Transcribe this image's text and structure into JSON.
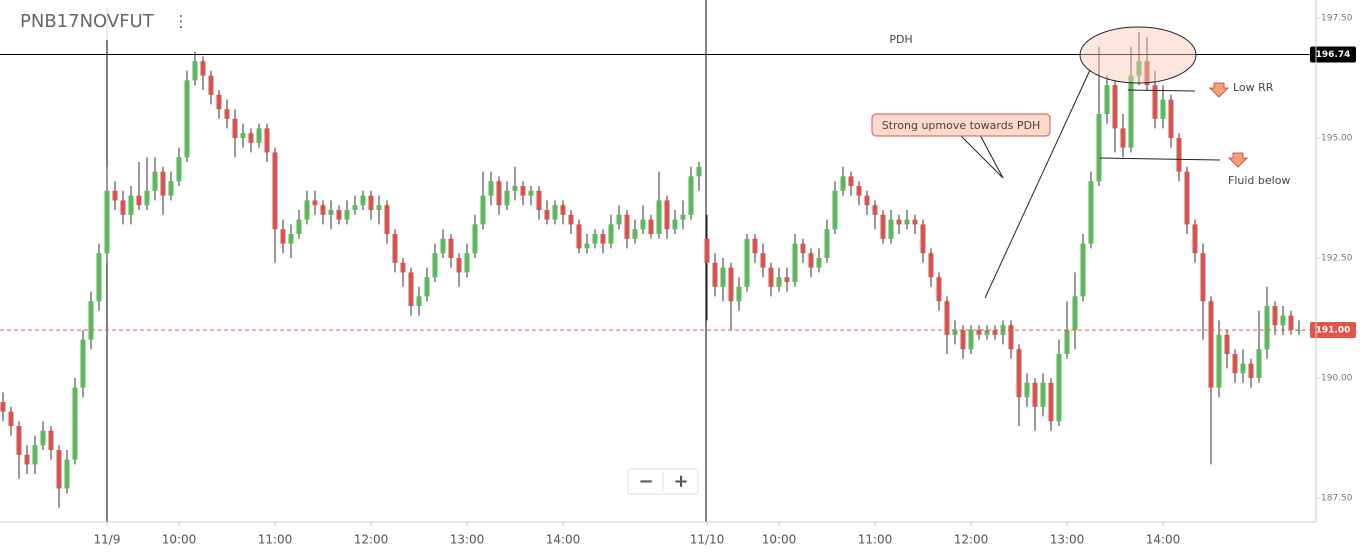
{
  "chart_data": {
    "type": "candlestick",
    "title": "PNB17NOVFUT",
    "up_color": "#5cb85c",
    "down_color": "#d9534f",
    "open": [
      189.5,
      189.3,
      189.0,
      188.4,
      188.2,
      188.6,
      188.9,
      188.5,
      187.7,
      188.3,
      189.8,
      190.8,
      191.6,
      192.6,
      193.9,
      193.7,
      193.4,
      193.8,
      193.6,
      193.9,
      194.3,
      193.8,
      194.1,
      194.6,
      196.2,
      196.6,
      196.3,
      195.9,
      195.6,
      195.4,
      195.0,
      195.1,
      194.9,
      195.2,
      194.7,
      193.1,
      192.8,
      193.0,
      193.3,
      193.7,
      193.6,
      193.4,
      193.5,
      193.3,
      193.5,
      193.6,
      193.8,
      193.5,
      193.6,
      193.0,
      192.4,
      192.2,
      191.5,
      191.7,
      192.1,
      192.6,
      192.9,
      192.5,
      192.2,
      192.6,
      193.2,
      193.8,
      194.1,
      193.6,
      193.9,
      194.0,
      193.8,
      193.9,
      193.5,
      193.3,
      193.6,
      193.4,
      193.2,
      192.7,
      192.8,
      193.0,
      192.8,
      193.2,
      193.4,
      192.9,
      193.1,
      193.3,
      193.0,
      193.7,
      193.1,
      193.3,
      193.4,
      194.2,
      192.9,
      192.4,
      191.9,
      192.3,
      191.6,
      191.9,
      192.9,
      192.6,
      192.3,
      191.9,
      192.1,
      192.0,
      192.8,
      192.6,
      192.3,
      192.5,
      193.1,
      193.9,
      194.2,
      194.0,
      193.8,
      193.6,
      193.4,
      192.9,
      193.3,
      193.2,
      193.3,
      193.2,
      192.6,
      192.1,
      191.6,
      190.9,
      191.0,
      190.6,
      191.0,
      190.9,
      191.0,
      190.9,
      191.1,
      190.6,
      189.6,
      189.9,
      189.4,
      189.9,
      189.1,
      190.5,
      191.0,
      191.7,
      192.8,
      194.1,
      195.5,
      196.1,
      195.2,
      194.8,
      196.3,
      196.6,
      196.1,
      195.4,
      195.8,
      195.0,
      194.3,
      193.2,
      192.6,
      191.6,
      189.8,
      190.9,
      190.5,
      190.1,
      190.3,
      190.0,
      190.6,
      191.5,
      191.1,
      191.3,
      191.0
    ],
    "high": [
      189.7,
      189.4,
      189.1,
      188.6,
      188.8,
      189.1,
      189.0,
      188.6,
      188.5,
      190.0,
      191.0,
      191.8,
      192.8,
      194.4,
      194.1,
      193.9,
      194.0,
      194.5,
      194.6,
      194.6,
      194.4,
      194.3,
      194.8,
      196.4,
      196.8,
      196.7,
      196.4,
      196.0,
      195.8,
      195.6,
      195.3,
      195.2,
      195.3,
      195.3,
      194.8,
      193.3,
      193.2,
      193.5,
      193.9,
      193.9,
      193.7,
      193.7,
      193.6,
      193.7,
      193.8,
      193.9,
      193.9,
      193.8,
      193.7,
      193.1,
      192.5,
      192.3,
      191.9,
      192.3,
      192.8,
      193.1,
      193.0,
      192.6,
      192.8,
      193.4,
      194.3,
      194.3,
      194.2,
      194.1,
      194.4,
      194.1,
      194.0,
      194.0,
      193.7,
      193.7,
      193.7,
      193.5,
      193.3,
      193.0,
      193.1,
      193.1,
      193.4,
      193.6,
      193.5,
      193.3,
      193.6,
      193.4,
      194.3,
      193.8,
      193.5,
      193.7,
      194.4,
      194.5,
      193.4,
      192.6,
      192.5,
      192.4,
      192.1,
      193.0,
      193.0,
      192.8,
      192.4,
      192.3,
      192.3,
      193.0,
      192.9,
      192.7,
      192.7,
      193.3,
      194.1,
      194.4,
      194.3,
      194.1,
      193.9,
      193.7,
      193.5,
      193.5,
      193.4,
      193.5,
      193.4,
      193.3,
      192.7,
      192.2,
      191.7,
      191.2,
      191.1,
      191.1,
      191.1,
      191.1,
      191.1,
      191.2,
      191.2,
      190.7,
      190.1,
      190.0,
      190.1,
      190.0,
      190.8,
      191.6,
      192.2,
      193.0,
      194.3,
      196.9,
      196.3,
      196.2,
      195.5,
      196.9,
      197.2,
      197.1,
      196.4,
      196.1,
      195.9,
      195.1,
      194.4,
      193.3,
      192.8,
      191.7,
      191.2,
      191.0,
      190.6,
      190.6,
      190.4,
      191.4,
      191.9,
      191.6,
      191.5,
      191.4,
      191.2
    ],
    "low": [
      189.1,
      188.8,
      187.9,
      188.0,
      188.0,
      188.5,
      188.3,
      187.3,
      187.6,
      188.2,
      189.6,
      190.6,
      191.4,
      192.4,
      193.5,
      193.2,
      193.2,
      193.5,
      193.5,
      193.7,
      193.4,
      193.7,
      194.0,
      194.5,
      196.1,
      196.0,
      195.7,
      195.4,
      195.2,
      194.6,
      194.8,
      194.7,
      194.8,
      194.5,
      192.4,
      192.6,
      192.5,
      192.9,
      193.2,
      193.4,
      193.2,
      193.1,
      193.2,
      193.2,
      193.4,
      193.5,
      193.3,
      193.2,
      192.8,
      192.2,
      191.9,
      191.3,
      191.3,
      191.6,
      192.0,
      192.5,
      192.3,
      191.9,
      192.1,
      192.5,
      193.1,
      193.6,
      193.4,
      193.5,
      193.7,
      193.6,
      193.6,
      193.3,
      193.2,
      193.2,
      193.2,
      193.0,
      192.6,
      192.6,
      192.7,
      192.6,
      192.7,
      193.1,
      192.7,
      192.8,
      193.0,
      192.9,
      192.9,
      192.9,
      193.0,
      193.1,
      193.3,
      193.9,
      191.2,
      191.7,
      191.6,
      191.0,
      191.4,
      191.8,
      192.4,
      192.1,
      191.7,
      191.8,
      191.8,
      191.9,
      192.4,
      192.1,
      192.2,
      192.4,
      193.0,
      193.8,
      193.8,
      193.6,
      193.4,
      193.1,
      192.8,
      192.8,
      193.0,
      193.1,
      193.0,
      192.4,
      191.9,
      191.4,
      190.5,
      190.7,
      190.4,
      190.5,
      190.8,
      190.8,
      190.8,
      190.7,
      190.4,
      189.0,
      189.4,
      188.9,
      189.2,
      188.9,
      189.0,
      190.4,
      190.6,
      191.6,
      192.7,
      194.0,
      195.3,
      194.7,
      194.6,
      194.7,
      196.1,
      196.0,
      195.2,
      195.2,
      194.8,
      194.1,
      193.0,
      192.4,
      190.8,
      188.2,
      189.6,
      190.2,
      189.9,
      189.9,
      189.8,
      189.9,
      190.4,
      190.9,
      190.9,
      190.9,
      190.9
    ],
    "close": [
      189.3,
      189.0,
      188.4,
      188.2,
      188.6,
      188.9,
      188.5,
      187.7,
      188.3,
      189.8,
      190.8,
      191.6,
      192.6,
      193.9,
      193.7,
      193.4,
      193.8,
      193.6,
      193.9,
      194.3,
      193.8,
      194.1,
      194.6,
      196.2,
      196.6,
      196.3,
      195.9,
      195.6,
      195.4,
      195.0,
      195.1,
      194.9,
      195.2,
      194.7,
      193.1,
      192.8,
      193.0,
      193.3,
      193.7,
      193.6,
      193.4,
      193.5,
      193.3,
      193.5,
      193.6,
      193.8,
      193.5,
      193.6,
      193.0,
      192.4,
      192.2,
      191.5,
      191.7,
      192.1,
      192.6,
      192.9,
      192.5,
      192.2,
      192.6,
      193.2,
      193.8,
      194.1,
      193.6,
      193.9,
      194.0,
      193.8,
      193.9,
      193.5,
      193.3,
      193.6,
      193.4,
      193.2,
      192.7,
      192.8,
      193.0,
      192.8,
      193.2,
      193.4,
      192.9,
      193.1,
      193.3,
      193.0,
      193.7,
      193.1,
      193.3,
      193.4,
      194.2,
      194.4,
      192.4,
      191.9,
      192.3,
      191.6,
      191.9,
      192.9,
      192.6,
      192.3,
      191.9,
      192.1,
      192.0,
      192.8,
      192.6,
      192.3,
      192.5,
      193.1,
      193.9,
      194.2,
      194.0,
      193.8,
      193.6,
      193.4,
      192.9,
      193.3,
      193.2,
      193.3,
      193.2,
      192.6,
      192.1,
      191.6,
      190.9,
      191.0,
      190.6,
      191.0,
      190.9,
      191.0,
      190.9,
      191.1,
      190.6,
      189.6,
      189.9,
      189.4,
      189.9,
      189.1,
      190.5,
      191.0,
      191.7,
      192.8,
      194.1,
      195.5,
      196.1,
      195.2,
      194.8,
      196.3,
      196.6,
      196.1,
      195.4,
      195.8,
      195.0,
      194.3,
      193.2,
      192.6,
      191.6,
      189.8,
      190.9,
      190.5,
      190.1,
      190.3,
      190.0,
      190.6,
      191.5,
      191.1,
      191.3,
      191.0,
      191.0
    ],
    "ylim": [
      187.0,
      197.875
    ],
    "yticks": [
      {
        "value": 187.5,
        "label": "187.50"
      },
      {
        "value": 190,
        "label": "190.00"
      },
      {
        "value": 192.5,
        "label": "192.50"
      },
      {
        "value": 195,
        "label": "195.00"
      },
      {
        "value": 197.5,
        "label": "197.50"
      }
    ],
    "xlim": [
      -0.375,
      164.125
    ],
    "xticks": [
      {
        "value": 13,
        "label": "11/9"
      },
      {
        "value": 22,
        "label": "10:00"
      },
      {
        "value": 34,
        "label": "11:00"
      },
      {
        "value": 46,
        "label": "12:00"
      },
      {
        "value": 58,
        "label": "13:00"
      },
      {
        "value": 70,
        "label": "14:00"
      },
      {
        "value": 88,
        "label": "11/10"
      },
      {
        "value": 97,
        "label": "10:00"
      },
      {
        "value": 109,
        "label": "11:00"
      },
      {
        "value": 121,
        "label": "12:00"
      },
      {
        "value": 133,
        "label": "13:00"
      },
      {
        "value": 145,
        "label": "14:00"
      }
    ],
    "price_lines": [
      {
        "value": 196.74,
        "color": "#000000",
        "dashed": false
      },
      {
        "value": 191,
        "label": "191.00",
        "color": "#e0574a",
        "dashed": true
      }
    ],
    "annotations": [
      "PDH",
      "Strong upmove towards PDH",
      "Low RR",
      "Fluid below"
    ]
  },
  "controls": [
    "−",
    "+"
  ]
}
